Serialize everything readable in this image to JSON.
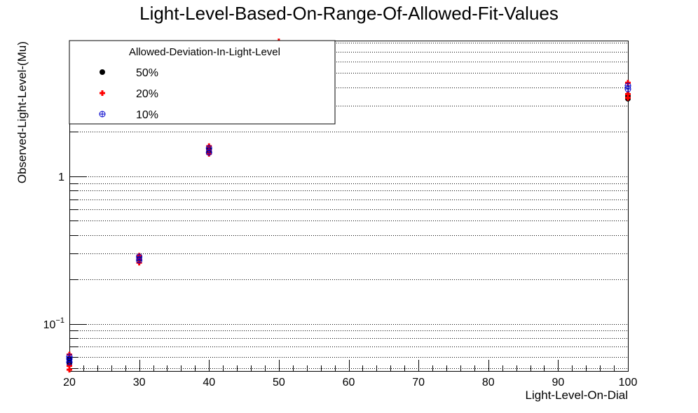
{
  "chart_data": {
    "type": "scatter",
    "title": "Light-Level-Based-On-Range-Of-Allowed-Fit-Values",
    "xlabel": "Light-Level-On-Dial",
    "ylabel": "Observed-Light-Level-(Mu)",
    "xlim": [
      20,
      100
    ],
    "ylim": [
      0.048,
      8.3
    ],
    "y_scale": "log",
    "grid_y": true,
    "x_ticks": [
      "20",
      "30",
      "40",
      "50",
      "60",
      "70",
      "80",
      "90",
      "100"
    ],
    "y_ticks": [
      {
        "value": 0.1,
        "base": "10",
        "exp": "−1"
      },
      {
        "value": 1,
        "base": "1",
        "exp": ""
      }
    ],
    "legend": {
      "title": "Allowed-Deviation-In-Light-Level",
      "placement": "top-left"
    },
    "series": [
      {
        "name": "50%",
        "color": "#000000",
        "marker": "filled-circle",
        "points": [
          [
            20,
            0.054
          ],
          [
            20,
            0.057
          ],
          [
            20,
            0.058
          ],
          [
            30,
            0.275
          ],
          [
            40,
            1.48
          ],
          [
            40,
            1.52
          ],
          [
            50,
            8.0
          ],
          [
            100,
            3.35
          ],
          [
            100,
            3.45
          ],
          [
            100,
            3.55
          ]
        ]
      },
      {
        "name": "20%",
        "color": "#ff0000",
        "marker": "plus",
        "points": [
          [
            20,
            0.049
          ],
          [
            20,
            0.052
          ],
          [
            20,
            0.062
          ],
          [
            30,
            0.26
          ],
          [
            30,
            0.275
          ],
          [
            30,
            0.29
          ],
          [
            40,
            1.42
          ],
          [
            40,
            1.5
          ],
          [
            40,
            1.6
          ],
          [
            50,
            8.2
          ],
          [
            100,
            3.4
          ],
          [
            100,
            3.6
          ],
          [
            100,
            4.3
          ]
        ]
      },
      {
        "name": "10%",
        "color": "#0000cc",
        "marker": "circle-plus",
        "points": [
          [
            20,
            0.055
          ],
          [
            20,
            0.058
          ],
          [
            20,
            0.06
          ],
          [
            30,
            0.27
          ],
          [
            30,
            0.285
          ],
          [
            40,
            1.45
          ],
          [
            40,
            1.55
          ],
          [
            100,
            3.9
          ],
          [
            100,
            4.1
          ]
        ]
      }
    ]
  }
}
